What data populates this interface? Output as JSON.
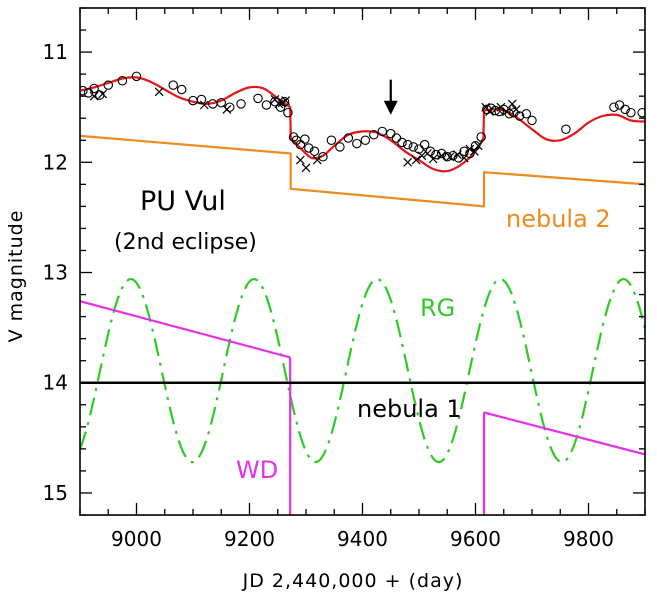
{
  "chart_data": {
    "type": "line",
    "xlabel": "JD 2,440,000 + (day)",
    "ylabel": "V magnitude",
    "xlim": [
      8900,
      9900
    ],
    "ylim": [
      15.2,
      10.6
    ],
    "y_inverted": true,
    "x_ticks": [
      9000,
      9200,
      9400,
      9600,
      9800
    ],
    "y_ticks": [
      11,
      12,
      13,
      14,
      15
    ],
    "annotations": {
      "title": "PU Vul",
      "subtitle": "(2nd eclipse)",
      "nebula2": "nebula 2",
      "nebula1": "nebula 1",
      "rg": "RG",
      "wd": "WD"
    },
    "arrow_at": {
      "x": 9450,
      "y_from": 11.25,
      "y_to": 11.55
    },
    "eclipse_ingress": 9273,
    "eclipse_egress": 9615,
    "series": [
      {
        "name": "model",
        "color": "#e8141b",
        "style": "solid",
        "x": [
          8900,
          8925,
          8950,
          8975,
          9000,
          9025,
          9050,
          9075,
          9100,
          9125,
          9150,
          9175,
          9200,
          9225,
          9250,
          9272,
          9273,
          9290,
          9310,
          9330,
          9350,
          9375,
          9400,
          9425,
          9450,
          9475,
          9500,
          9525,
          9550,
          9575,
          9600,
          9614,
          9615,
          9640,
          9660,
          9680,
          9700,
          9725,
          9750,
          9775,
          9800,
          9825,
          9850,
          9875,
          9900
        ],
        "y": [
          11.35,
          11.32,
          11.28,
          11.24,
          11.23,
          11.27,
          11.34,
          11.41,
          11.45,
          11.47,
          11.44,
          11.37,
          11.32,
          11.33,
          11.42,
          11.5,
          11.78,
          11.87,
          11.96,
          11.94,
          11.85,
          11.75,
          11.72,
          11.73,
          11.8,
          11.9,
          11.98,
          12.06,
          12.08,
          12.02,
          11.9,
          11.78,
          11.53,
          11.52,
          11.55,
          11.62,
          11.7,
          11.79,
          11.8,
          11.74,
          11.64,
          11.58,
          11.57,
          11.62,
          11.63
        ]
      },
      {
        "name": "nebula 2",
        "color": "#f08a1e",
        "style": "solid",
        "x": [
          8900,
          9273,
          9273,
          9615,
          9615,
          9900
        ],
        "y": [
          11.76,
          11.92,
          12.24,
          12.4,
          12.09,
          12.2
        ]
      },
      {
        "name": "RG",
        "color": "#2ecb25",
        "style": "dashdot",
        "mean": 13.89,
        "amplitude": 0.83,
        "period": 218,
        "phase_peak_x": 8990,
        "x_range": [
          8900,
          9900
        ]
      },
      {
        "name": "WD",
        "color": "#e432e4",
        "style": "solid",
        "segments": [
          {
            "x": [
              8900,
              9272
            ],
            "y": [
              13.26,
              13.77
            ]
          },
          {
            "x": [
              9272,
              9272
            ],
            "y": [
              13.77,
              15.2
            ]
          },
          {
            "x": [
              9615,
              9615
            ],
            "y": [
              15.2,
              14.27
            ]
          },
          {
            "x": [
              9615,
              9900
            ],
            "y": [
              14.27,
              14.65
            ]
          }
        ]
      },
      {
        "name": "nebula 1",
        "color": "#000000",
        "style": "solid",
        "x": [
          8900,
          9900
        ],
        "y": [
          14.0,
          14.0
        ]
      },
      {
        "name": "observed (circles)",
        "marker": "circle",
        "x": [
          8905,
          8915,
          8925,
          8935,
          8950,
          8975,
          9000,
          9065,
          9080,
          9100,
          9115,
          9135,
          9150,
          9165,
          9185,
          9215,
          9230,
          9245,
          9255,
          9262,
          9268,
          9278,
          9283,
          9290,
          9298,
          9305,
          9315,
          9330,
          9345,
          9360,
          9375,
          9390,
          9405,
          9420,
          9435,
          9450,
          9460,
          9470,
          9480,
          9490,
          9500,
          9510,
          9520,
          9530,
          9540,
          9550,
          9560,
          9570,
          9580,
          9590,
          9600,
          9610,
          9620,
          9628,
          9635,
          9642,
          9650,
          9660,
          9668,
          9678,
          9690,
          9700,
          9760,
          9845,
          9855,
          9865,
          9875,
          9895
        ],
        "y": [
          11.35,
          11.37,
          11.33,
          11.39,
          11.3,
          11.26,
          11.22,
          11.3,
          11.34,
          11.44,
          11.43,
          11.47,
          11.46,
          11.5,
          11.47,
          11.42,
          11.48,
          11.45,
          11.5,
          11.45,
          11.55,
          11.77,
          11.8,
          11.84,
          11.79,
          11.87,
          11.9,
          11.95,
          11.8,
          11.86,
          11.78,
          11.83,
          11.8,
          11.75,
          11.72,
          11.74,
          11.78,
          11.82,
          11.84,
          11.86,
          11.88,
          11.84,
          11.9,
          11.93,
          11.92,
          11.95,
          11.94,
          11.96,
          11.9,
          11.92,
          11.85,
          11.77,
          11.52,
          11.51,
          11.53,
          11.54,
          11.52,
          11.56,
          11.55,
          11.58,
          11.56,
          11.62,
          11.7,
          11.5,
          11.48,
          11.52,
          11.55,
          11.55
        ]
      },
      {
        "name": "observed (crosses)",
        "marker": "cross",
        "x": [
          8925,
          8940,
          9040,
          9120,
          9160,
          9245,
          9252,
          9258,
          9264,
          9290,
          9300,
          9320,
          9480,
          9495,
          9505,
          9515,
          9525,
          9540,
          9555,
          9568,
          9580,
          9590,
          9598,
          9605,
          9618,
          9625,
          9645,
          9655,
          9665,
          9672
        ],
        "y": [
          11.4,
          11.38,
          11.36,
          11.48,
          11.52,
          11.43,
          11.47,
          11.46,
          11.44,
          11.98,
          12.05,
          11.98,
          12.0,
          11.98,
          11.94,
          11.92,
          11.97,
          11.94,
          11.95,
          11.93,
          11.96,
          11.88,
          11.9,
          11.85,
          11.5,
          11.54,
          11.5,
          11.54,
          11.47,
          11.52
        ]
      }
    ]
  }
}
